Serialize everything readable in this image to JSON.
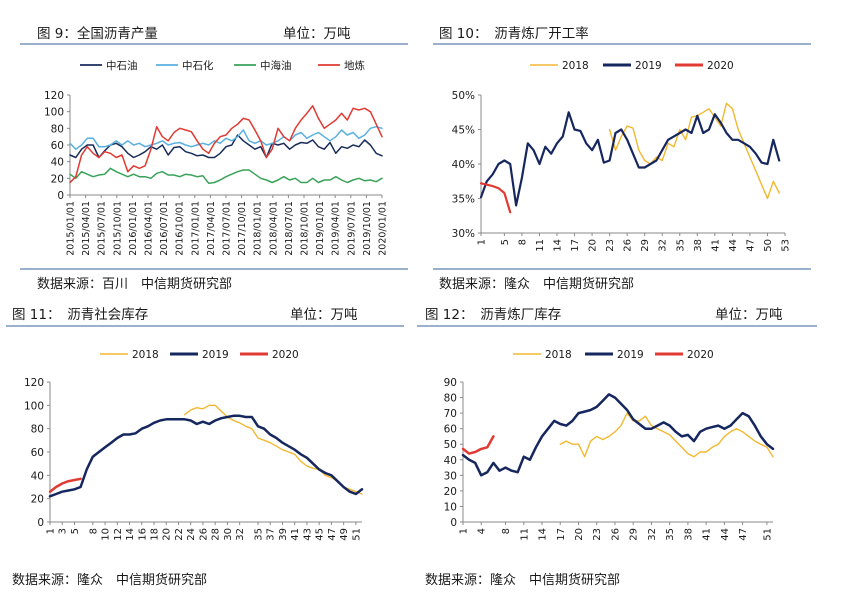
{
  "charts": [
    {
      "title": "图 9：全国沥青产量",
      "unit": "单位：万吨",
      "source": "数据来源：百川　中信期货研究部",
      "chart_data": {
        "type": "line",
        "title": "图 9：全国沥青产量",
        "unit": "单位：万吨",
        "ylim": [
          0,
          120
        ],
        "yticks": [
          "0",
          "20",
          "40",
          "60",
          "80",
          "100",
          "120"
        ],
        "xtick_labels": [
          "2015/01/01",
          "2015/04/01",
          "2015/07/01",
          "2015/10/01",
          "2016/01/01",
          "2016/04/01",
          "2016/07/01",
          "2016/10/01",
          "2017/01/01",
          "2017/04/01",
          "2017/07/01",
          "2017/10/01",
          "2018/01/01",
          "2018/04/01",
          "2018/07/01",
          "2018/10/01",
          "2019/01/01",
          "2019/04/01",
          "2019/07/01",
          "2019/10/01",
          "2020/01/01"
        ],
        "legend_position": "top",
        "grid": false,
        "series": [
          {
            "name": "中石油",
            "color": "#1a2c5b",
            "values": [
              48,
              45,
              55,
              60,
              60,
              45,
              53,
              60,
              62,
              58,
              50,
              45,
              48,
              52,
              58,
              55,
              60,
              48,
              57,
              58,
              52,
              50,
              47,
              48,
              45,
              45,
              50,
              58,
              60,
              72,
              65,
              60,
              55,
              58,
              45,
              62,
              60,
              62,
              55,
              60,
              63,
              62,
              66,
              58,
              55,
              63,
              50,
              58,
              56,
              60,
              58,
              66,
              60,
              50,
              47
            ]
          },
          {
            "name": "中石化",
            "color": "#5ab0e0",
            "values": [
              62,
              55,
              60,
              68,
              68,
              58,
              58,
              60,
              65,
              60,
              65,
              60,
              62,
              58,
              60,
              62,
              65,
              60,
              62,
              63,
              60,
              58,
              60,
              62,
              60,
              65,
              62,
              68,
              65,
              70,
              78,
              65,
              62,
              65,
              60,
              62,
              65,
              70,
              65,
              72,
              75,
              68,
              72,
              75,
              70,
              65,
              70,
              78,
              72,
              75,
              68,
              72,
              80,
              82,
              80
            ]
          },
          {
            "name": "中海油",
            "color": "#3aa35a",
            "values": [
              25,
              20,
              28,
              25,
              22,
              24,
              25,
              32,
              28,
              25,
              22,
              25,
              22,
              22,
              20,
              26,
              28,
              24,
              24,
              22,
              25,
              24,
              22,
              23,
              14,
              15,
              18,
              22,
              25,
              28,
              30,
              30,
              25,
              20,
              18,
              15,
              18,
              22,
              18,
              20,
              15,
              15,
              20,
              15,
              18,
              18,
              22,
              18,
              15,
              18,
              20,
              17,
              18,
              16,
              20
            ]
          },
          {
            "name": "地炼",
            "color": "#e03a32",
            "values": [
              15,
              22,
              48,
              58,
              50,
              45,
              52,
              50,
              45,
              48,
              28,
              35,
              32,
              35,
              55,
              82,
              70,
              65,
              75,
              80,
              78,
              76,
              65,
              55,
              50,
              62,
              70,
              72,
              80,
              85,
              92,
              90,
              78,
              65,
              45,
              55,
              80,
              70,
              65,
              80,
              90,
              98,
              107,
              92,
              80,
              85,
              90,
              98,
              90,
              104,
              102,
              104,
              100,
              85,
              70
            ]
          }
        ]
      }
    },
    {
      "title": "图 10：　沥青炼厂开工率",
      "source": "数据来源：隆众　中信期货研究部",
      "chart_data": {
        "type": "line",
        "title": "图 10：　沥青炼厂开工率",
        "ylim": [
          30,
          50
        ],
        "yticks": [
          "30%",
          "35%",
          "40%",
          "45%",
          "50%"
        ],
        "xtick_labels": [
          "1",
          "5",
          "8",
          "11",
          "14",
          "17",
          "20",
          "23",
          "26",
          "29",
          "32",
          "35",
          "38",
          "41",
          "44",
          "47",
          "50",
          "53"
        ],
        "x_unit": "week",
        "legend_position": "top",
        "grid": false,
        "series": [
          {
            "name": "2018",
            "color": "#f2b830",
            "x": [
              23,
              24,
              25,
              26,
              27,
              28,
              29,
              30,
              31,
              32,
              33,
              34,
              35,
              36,
              37,
              38,
              39,
              40,
              41,
              42,
              43,
              44,
              45,
              46,
              47,
              48,
              49,
              50,
              51,
              52
            ],
            "values": [
              45,
              42,
              44,
              45.5,
              45.2,
              42,
              40.5,
              40,
              41,
              40.5,
              43,
              42.5,
              45,
              43.5,
              46.8,
              47,
              47.5,
              48,
              46.8,
              45.5,
              48.8,
              48,
              45,
              43,
              41,
              39,
              37,
              35,
              37.5,
              35.8
            ]
          },
          {
            "name": "2019",
            "color": "#15275e",
            "x": [
              1,
              2,
              3,
              4,
              5,
              6,
              7,
              8,
              9,
              10,
              11,
              12,
              13,
              14,
              15,
              16,
              17,
              18,
              19,
              20,
              21,
              22,
              23,
              24,
              25,
              26,
              27,
              28,
              29,
              30,
              31,
              32,
              33,
              34,
              35,
              36,
              37,
              38,
              39,
              40,
              41,
              42,
              43,
              44,
              45,
              46,
              47,
              48,
              49,
              50,
              51,
              52
            ],
            "values": [
              35.2,
              37.5,
              38.5,
              40,
              40.5,
              40,
              34,
              38,
              43,
              42,
              40,
              42.5,
              41.5,
              43,
              44,
              47.5,
              45,
              44.8,
              43,
              42,
              43.5,
              40.2,
              40.5,
              44.5,
              45,
              43.5,
              41.5,
              39.5,
              39.5,
              40,
              40.5,
              42,
              43.5,
              44,
              44.5,
              45,
              44.5,
              47,
              44.5,
              45,
              47.2,
              46,
              44.5,
              43.5,
              43.5,
              43,
              42.5,
              41.5,
              40.2,
              40,
              43.5,
              40.5
            ]
          },
          {
            "name": "2020",
            "color": "#e03a32",
            "x": [
              1,
              2,
              3,
              4,
              5,
              6
            ],
            "values": [
              37.2,
              37,
              36.8,
              36.5,
              35.8,
              33
            ]
          }
        ]
      }
    },
    {
      "title": "图 11：　沥青社会库存",
      "unit": "单位：万吨",
      "source": "数据来源：隆众　中信期货研究部",
      "chart_data": {
        "type": "line",
        "title": "图 11：　沥青社会库存",
        "unit": "单位：万吨",
        "ylim": [
          0,
          120
        ],
        "yticks": [
          "0",
          "20",
          "40",
          "60",
          "80",
          "100",
          "120"
        ],
        "xtick_labels": [
          "1",
          "3",
          "5",
          "8",
          "10",
          "12",
          "14",
          "16",
          "18",
          "20",
          "22",
          "24",
          "26",
          "28",
          "30",
          "32",
          "35",
          "37",
          "39",
          "41",
          "43",
          "45",
          "47",
          "49",
          "51"
        ],
        "x_unit": "week",
        "legend_position": "top",
        "grid": false,
        "series": [
          {
            "name": "2018",
            "color": "#f2b830",
            "x": [
              23,
              24,
              25,
              26,
              27,
              28,
              29,
              30,
              31,
              32,
              33,
              34,
              35,
              36,
              37,
              38,
              39,
              40,
              41,
              42,
              43,
              44,
              45,
              46,
              47,
              48,
              49,
              50,
              51,
              52
            ],
            "values": [
              92,
              96,
              98,
              97,
              100,
              100,
              95,
              90,
              87,
              85,
              82,
              80,
              72,
              70,
              68,
              65,
              62,
              60,
              58,
              52,
              48,
              46,
              45,
              40,
              38,
              35,
              30,
              28,
              26,
              24
            ]
          },
          {
            "name": "2019",
            "color": "#15275e",
            "x": [
              1,
              2,
              3,
              4,
              5,
              6,
              7,
              8,
              9,
              10,
              11,
              12,
              13,
              14,
              15,
              16,
              17,
              18,
              19,
              20,
              21,
              22,
              23,
              24,
              25,
              26,
              27,
              28,
              29,
              30,
              31,
              32,
              33,
              34,
              35,
              36,
              37,
              38,
              39,
              40,
              41,
              42,
              43,
              44,
              45,
              46,
              47,
              48,
              49,
              50,
              51,
              52
            ],
            "values": [
              22,
              24,
              26,
              27,
              28,
              30,
              45,
              56,
              60,
              64,
              68,
              72,
              75,
              75,
              76,
              80,
              82,
              85,
              87,
              88,
              88,
              88,
              88,
              87,
              84,
              86,
              84,
              87,
              89,
              90,
              91,
              91,
              90,
              90,
              82,
              80,
              75,
              72,
              68,
              65,
              62,
              58,
              55,
              50,
              45,
              42,
              40,
              35,
              30,
              26,
              24,
              28
            ]
          },
          {
            "name": "2020",
            "color": "#e03a32",
            "x": [
              1,
              2,
              3,
              4,
              5,
              6
            ],
            "values": [
              26,
              30,
              33,
              35,
              36,
              37
            ]
          }
        ]
      }
    },
    {
      "title": "图 12：　沥青炼厂库存",
      "unit": "单位：万吨",
      "source": "数据来源：隆众　中信期货研究部",
      "chart_data": {
        "type": "line",
        "title": "图 12：　沥青炼厂库存",
        "unit": "单位：万吨",
        "ylim": [
          0,
          90
        ],
        "yticks": [
          "0",
          "10",
          "20",
          "30",
          "40",
          "50",
          "60",
          "70",
          "80",
          "90"
        ],
        "xtick_labels": [
          "1",
          "4",
          "8",
          "11",
          "14",
          "17",
          "20",
          "23",
          "26",
          "29",
          "32",
          "35",
          "38",
          "41",
          "44",
          "47",
          "51"
        ],
        "x_unit": "week",
        "legend_position": "top",
        "grid": false,
        "series": [
          {
            "name": "2018",
            "color": "#f2b830",
            "x": [
              17,
              18,
              19,
              20,
              21,
              22,
              23,
              24,
              25,
              26,
              27,
              28,
              29,
              30,
              31,
              32,
              33,
              34,
              35,
              36,
              37,
              38,
              39,
              40,
              41,
              42,
              43,
              44,
              45,
              46,
              47,
              48,
              49,
              50,
              51,
              52
            ],
            "values": [
              50,
              52,
              50,
              50,
              42,
              52,
              55,
              53,
              55,
              58,
              62,
              70,
              65,
              65,
              68,
              62,
              60,
              58,
              56,
              52,
              48,
              44,
              42,
              45,
              45,
              48,
              50,
              55,
              58,
              60,
              58,
              55,
              52,
              50,
              48,
              42
            ]
          },
          {
            "name": "2019",
            "color": "#15275e",
            "x": [
              1,
              2,
              3,
              4,
              5,
              6,
              7,
              8,
              9,
              10,
              11,
              12,
              13,
              14,
              15,
              16,
              17,
              18,
              19,
              20,
              21,
              22,
              23,
              24,
              25,
              26,
              27,
              28,
              29,
              30,
              31,
              32,
              33,
              34,
              35,
              36,
              37,
              38,
              39,
              40,
              41,
              42,
              43,
              44,
              45,
              46,
              47,
              48,
              49,
              50,
              51,
              52
            ],
            "values": [
              43,
              40,
              38,
              30,
              32,
              38,
              33,
              35,
              33,
              32,
              42,
              40,
              48,
              55,
              60,
              65,
              63,
              62,
              65,
              70,
              71,
              72,
              74,
              78,
              82,
              80,
              76,
              72,
              66,
              63,
              60,
              60,
              62,
              64,
              62,
              58,
              55,
              56,
              52,
              58,
              60,
              61,
              62,
              60,
              62,
              66,
              70,
              68,
              62,
              55,
              50,
              47
            ]
          },
          {
            "name": "2020",
            "color": "#e03a32",
            "x": [
              1,
              2,
              3,
              4,
              5,
              6
            ],
            "values": [
              47,
              44,
              45,
              47,
              48,
              55
            ]
          }
        ]
      }
    }
  ]
}
